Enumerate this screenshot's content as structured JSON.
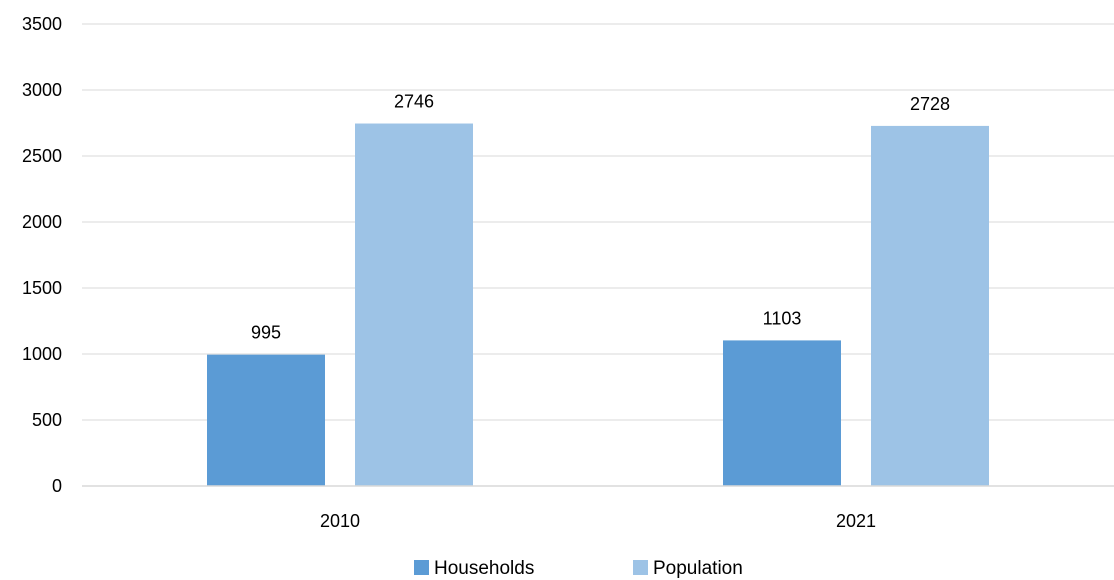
{
  "chart_data": {
    "type": "bar",
    "title": "",
    "xlabel": "",
    "ylabel": "",
    "categories": [
      "2010",
      "2021"
    ],
    "series": [
      {
        "name": "Households",
        "values": [
          995,
          1103
        ],
        "color": "#5b9bd5"
      },
      {
        "name": "Population",
        "values": [
          2746,
          2728
        ],
        "color": "#9dc3e6"
      }
    ],
    "ylim": [
      0,
      3500
    ],
    "yticks": [
      0,
      500,
      1000,
      1500,
      2000,
      2500,
      3000,
      3500
    ],
    "grid": true,
    "legend_position": "bottom",
    "data_labels": true
  }
}
